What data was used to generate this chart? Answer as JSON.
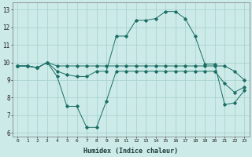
{
  "xlabel": "Humidex (Indice chaleur)",
  "bg_color": "#cceae7",
  "grid_color": "#aad4d0",
  "line_color": "#1a6e65",
  "xlim": [
    -0.5,
    23.5
  ],
  "ylim": [
    5.8,
    13.4
  ],
  "yticks": [
    6,
    7,
    8,
    9,
    10,
    11,
    12,
    13
  ],
  "xticks": [
    0,
    1,
    2,
    3,
    4,
    5,
    6,
    7,
    8,
    9,
    10,
    11,
    12,
    13,
    14,
    15,
    16,
    17,
    18,
    19,
    20,
    21,
    22,
    23
  ],
  "series1_x": [
    0,
    1,
    2,
    3,
    4,
    5,
    6,
    7,
    8,
    9,
    10,
    11,
    12,
    13,
    14,
    15,
    16,
    17,
    18,
    19,
    20,
    21,
    22,
    23
  ],
  "series1_y": [
    9.8,
    9.8,
    9.7,
    10.0,
    9.5,
    9.3,
    9.2,
    9.2,
    9.5,
    9.5,
    11.5,
    11.5,
    12.4,
    12.4,
    12.5,
    12.9,
    12.9,
    12.5,
    11.5,
    9.9,
    9.9,
    7.6,
    7.7,
    8.4
  ],
  "series2_x": [
    0,
    1,
    2,
    3,
    4,
    5,
    6,
    7,
    8,
    9,
    10,
    11,
    12,
    13,
    14,
    15,
    16,
    17,
    18,
    19,
    20,
    21,
    22,
    23
  ],
  "series2_y": [
    9.8,
    9.8,
    9.7,
    10.0,
    9.8,
    9.8,
    9.8,
    9.8,
    9.8,
    9.8,
    9.8,
    9.8,
    9.8,
    9.8,
    9.8,
    9.8,
    9.8,
    9.8,
    9.8,
    9.8,
    9.8,
    9.8,
    9.5,
    9.0
  ],
  "series3_x": [
    0,
    1,
    2,
    3,
    4,
    5,
    6,
    7,
    8,
    9,
    10,
    11,
    12,
    13,
    14,
    15,
    16,
    17,
    18,
    19,
    20,
    21,
    22,
    23
  ],
  "series3_y": [
    9.8,
    9.8,
    9.7,
    10.0,
    9.2,
    7.5,
    7.5,
    6.3,
    6.3,
    7.8,
    9.5,
    9.5,
    9.5,
    9.5,
    9.5,
    9.5,
    9.5,
    9.5,
    9.5,
    9.5,
    9.5,
    8.8,
    8.3,
    8.6
  ]
}
